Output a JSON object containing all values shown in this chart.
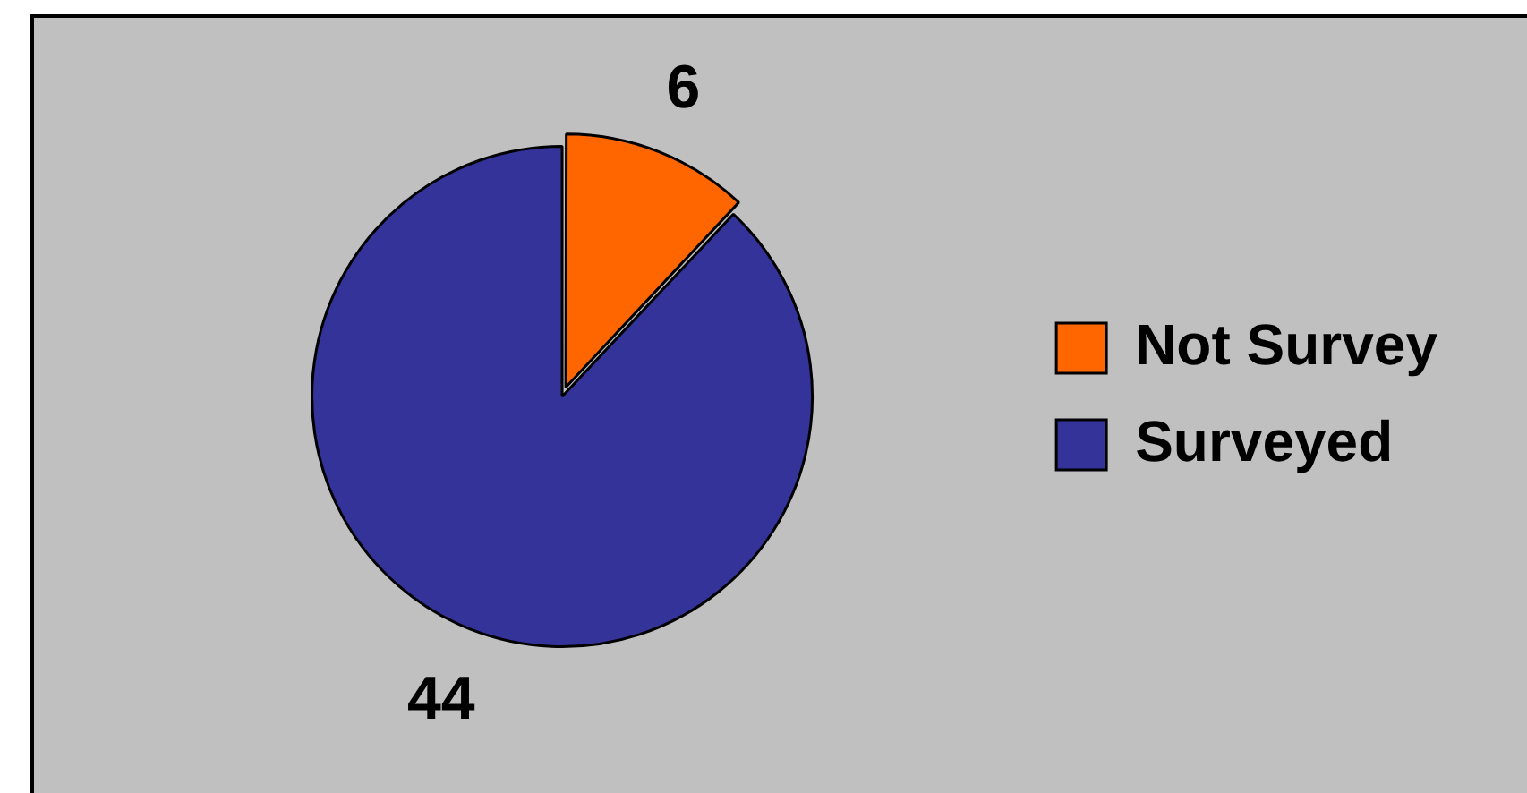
{
  "chart_data": {
    "type": "pie",
    "categories": [
      "Not Survey",
      "Surveyed"
    ],
    "values": [
      6,
      44
    ],
    "colors": [
      "#ff6600",
      "#333399"
    ],
    "data_labels": true,
    "legend": "right"
  }
}
